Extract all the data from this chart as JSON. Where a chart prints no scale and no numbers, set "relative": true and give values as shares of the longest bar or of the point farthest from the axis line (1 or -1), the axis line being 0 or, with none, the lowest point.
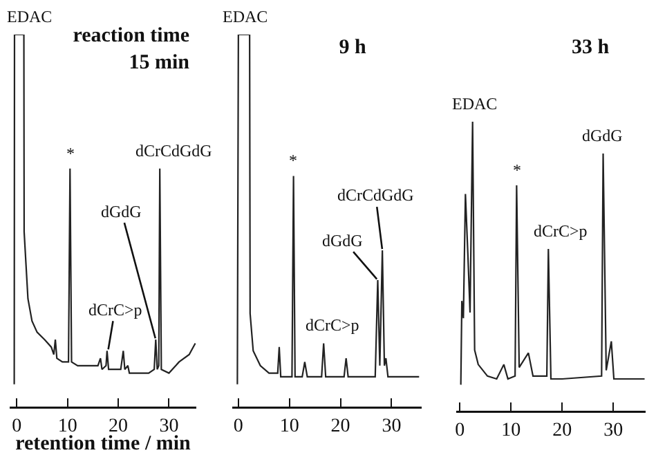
{
  "chart_data": [
    {
      "type": "line",
      "relative": true,
      "title": "reaction time\n15 min",
      "xlabel": "retention time / min",
      "xlim": [
        -1.4,
        35.4
      ],
      "xticks": [
        0,
        10,
        20,
        30
      ],
      "tick_labels": "x",
      "grid": false,
      "series": [
        {
          "color": "#222222",
          "x": [
            -0.5,
            -0.45,
            1.4,
            1.45,
            2.2,
            3,
            4,
            5.5,
            6.8,
            7.3,
            7.6,
            7.9,
            9,
            10.2,
            10.5,
            10.8,
            12,
            14,
            16,
            16.5,
            16.8,
            17.6,
            17.8,
            18.1,
            19,
            20.5,
            21,
            21.3,
            21.9,
            22.2,
            24,
            26,
            27.1,
            27.4,
            27.7,
            28.0,
            28.2,
            28.5,
            30,
            32,
            34,
            35.2
          ],
          "values": [
            0.06,
            1,
            1,
            0.47,
            0.29,
            0.23,
            0.2,
            0.18,
            0.16,
            0.14,
            0.18,
            0.13,
            0.12,
            0.12,
            0.64,
            0.12,
            0.11,
            0.11,
            0.11,
            0.13,
            0.1,
            0.11,
            0.15,
            0.1,
            0.1,
            0.1,
            0.15,
            0.1,
            0.11,
            0.09,
            0.09,
            0.09,
            0.1,
            0.18,
            0.1,
            0.11,
            0.64,
            0.1,
            0.09,
            0.12,
            0.14,
            0.17
          ]
        }
      ],
      "annotations": [
        {
          "text": "EDAC",
          "x": 0.5,
          "y": 1
        },
        {
          "text": "*",
          "x": 10.5,
          "y": 0.64
        },
        {
          "text": "dCrC>p",
          "x": 18,
          "y": 0.15
        },
        {
          "text": "dGdG",
          "x": 27.4,
          "y": 0.18
        },
        {
          "text": "dCrCdGdG",
          "x": 28.2,
          "y": 0.64
        }
      ]
    },
    {
      "type": "line",
      "relative": true,
      "title": "9 h",
      "xlim": [
        -1.2,
        35.9
      ],
      "xticks": [
        0,
        10,
        20,
        30
      ],
      "tick_labels": "x",
      "grid": false,
      "series": [
        {
          "color": "#222222",
          "x": [
            -0.2,
            0,
            2.2,
            2.3,
            2.9,
            4.3,
            6,
            7.7,
            8.0,
            8.3,
            10.5,
            10.8,
            11.1,
            12.5,
            13,
            13.5,
            16.3,
            16.7,
            17.1,
            20.7,
            21.1,
            21.5,
            26.8,
            27.3,
            27.7,
            28.2,
            28.6,
            28.9,
            29.3,
            35.4
          ],
          "values": [
            0.06,
            1,
            1,
            0.25,
            0.15,
            0.11,
            0.09,
            0.09,
            0.16,
            0.08,
            0.08,
            0.62,
            0.08,
            0.08,
            0.12,
            0.08,
            0.08,
            0.17,
            0.08,
            0.08,
            0.13,
            0.08,
            0.08,
            0.34,
            0.11,
            0.42,
            0.11,
            0.13,
            0.08,
            0.08
          ]
        }
      ],
      "annotations": [
        {
          "text": "EDAC",
          "x": 1.5,
          "y": 1
        },
        {
          "text": "*",
          "x": 10.8,
          "y": 0.62
        },
        {
          "text": "dCrC>p",
          "x": 16.7,
          "y": 0.17
        },
        {
          "text": "dGdG",
          "x": 27.3,
          "y": 0.34
        },
        {
          "text": "dCrCdGdG",
          "x": 28.2,
          "y": 0.42
        }
      ]
    },
    {
      "type": "line",
      "relative": true,
      "title": "33 h",
      "xlim": [
        -0.7,
        36.3
      ],
      "xticks": [
        0,
        10,
        20,
        30
      ],
      "tick_labels": "x",
      "grid": false,
      "series": [
        {
          "color": "#222222",
          "x": [
            0.2,
            0.4,
            0.7,
            1.1,
            1.6,
            2.0,
            2.5,
            2.9,
            3.6,
            5.4,
            7.2,
            8.6,
            9.4,
            10.8,
            11.1,
            11.6,
            13.4,
            14.3,
            17.0,
            17.3,
            17.8,
            20,
            27.7,
            28.0,
            28.6,
            29.6,
            30.1,
            36.1
          ],
          "values": [
            0.09,
            0.38,
            0.32,
            0.75,
            0.53,
            0.34,
            1,
            0.21,
            0.16,
            0.12,
            0.11,
            0.16,
            0.11,
            0.12,
            0.78,
            0.15,
            0.2,
            0.12,
            0.12,
            0.56,
            0.11,
            0.11,
            0.12,
            0.89,
            0.14,
            0.24,
            0.11,
            0.11
          ]
        }
      ],
      "annotations": [
        {
          "text": "EDAC",
          "x": 2.5,
          "y": 1
        },
        {
          "text": "*",
          "x": 11.1,
          "y": 0.78
        },
        {
          "text": "dCrC>p",
          "x": 17.3,
          "y": 0.56
        },
        {
          "text": "dGdG",
          "x": 28,
          "y": 0.89
        }
      ]
    }
  ]
}
